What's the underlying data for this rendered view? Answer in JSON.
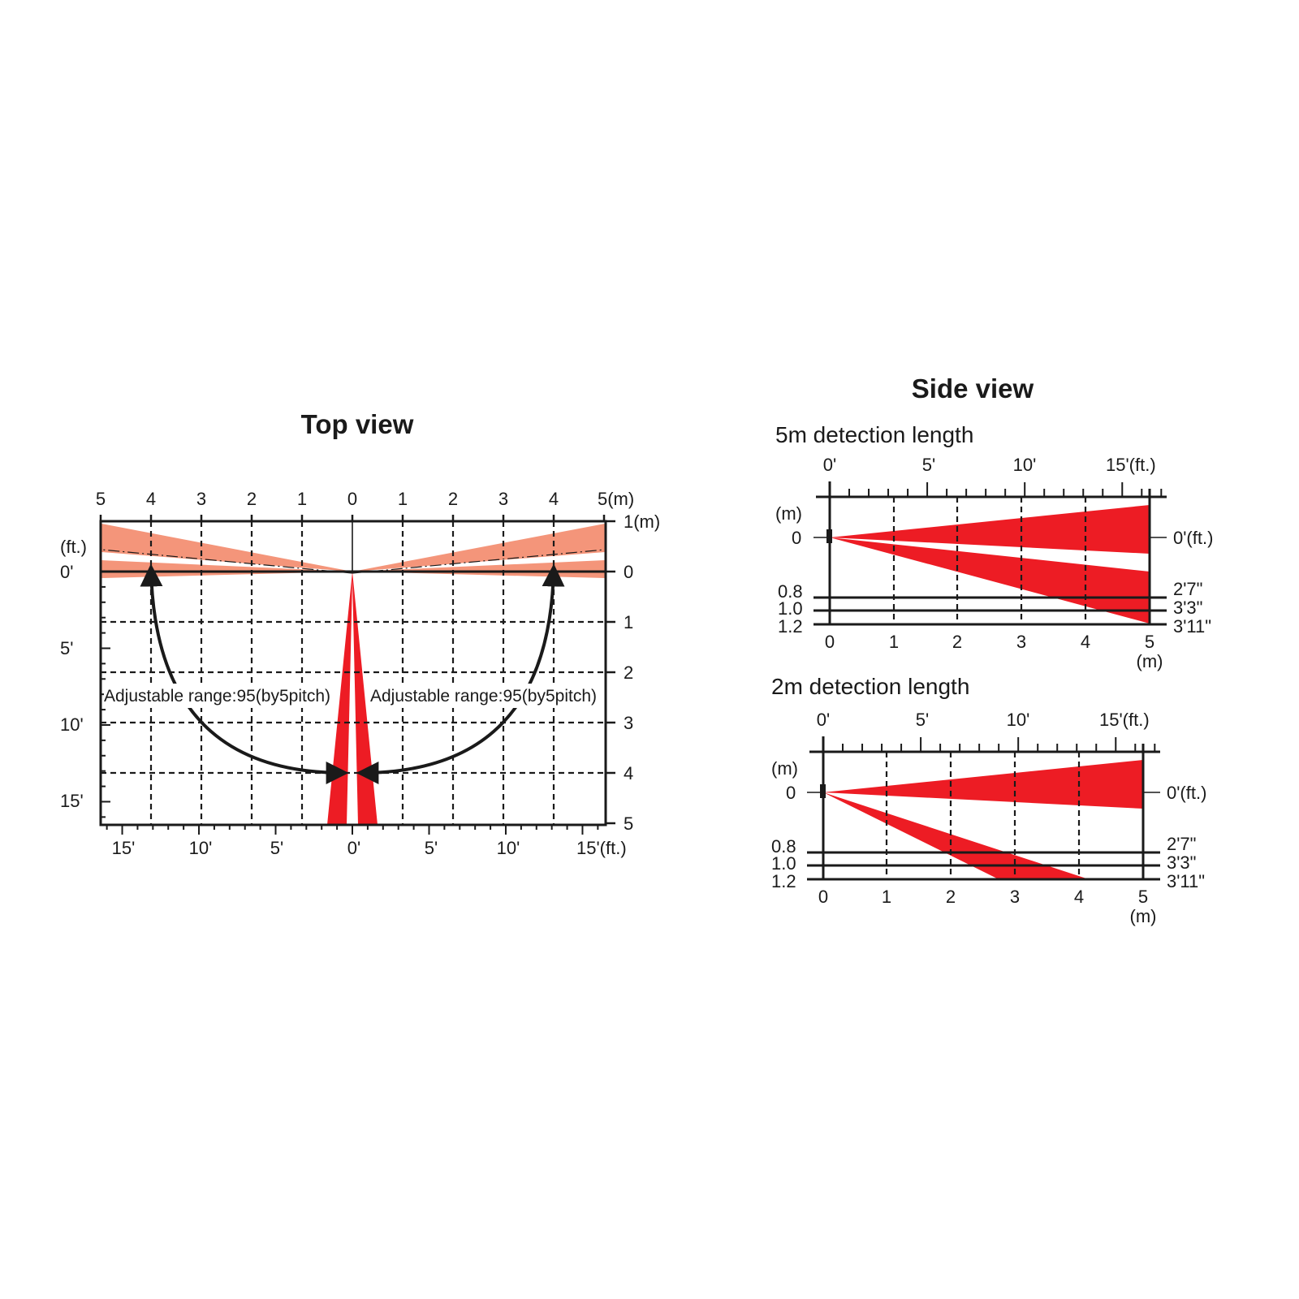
{
  "colors": {
    "beam": "#ed1c24",
    "beam_light": "#f4957a",
    "line": "#1a1a1a"
  },
  "top_view": {
    "title": "Top view",
    "m_top_labels": [
      "5",
      "4",
      "3",
      "2",
      "1",
      "0",
      "1",
      "2",
      "3",
      "4",
      "5(m)"
    ],
    "m_right_labels": [
      "1(m)",
      "0",
      "1",
      "2",
      "3",
      "4",
      "5"
    ],
    "ft_left_unit": "(ft.)",
    "ft_left_labels": [
      "0'",
      "5'",
      "10'",
      "15'"
    ],
    "ft_bottom_labels": [
      "15'",
      "10'",
      "5'",
      "0'",
      "5'",
      "10'",
      "15'(ft.)"
    ],
    "note_left": "Adjustable range:95(by5pitch)",
    "note_right": "Adjustable range:95(by5pitch)"
  },
  "side_view": {
    "title": "Side view",
    "panels": [
      {
        "subtitle": "5m detection length",
        "ft_top_labels": [
          "0'",
          "5'",
          "10'",
          "15'(ft.)"
        ],
        "m_unit_left": "(m)",
        "left_labels": [
          "0",
          "0.8",
          "1.0",
          "1.2"
        ],
        "right_labels": [
          "0'(ft.)",
          "2'7\"",
          "3'3\"",
          "3'11\""
        ],
        "bottom_labels": [
          "0",
          "1",
          "2",
          "3",
          "4",
          "5"
        ],
        "bottom_unit": "(m)",
        "lower_beam_end_m": 5
      },
      {
        "subtitle": "2m detection length",
        "ft_top_labels": [
          "0'",
          "5'",
          "10'",
          "15'(ft.)"
        ],
        "m_unit_left": "(m)",
        "left_labels": [
          "0",
          "0.8",
          "1.0",
          "1.2"
        ],
        "right_labels": [
          "0'(ft.)",
          "2'7\"",
          "3'3\"",
          "3'11\""
        ],
        "bottom_labels": [
          "0",
          "1",
          "2",
          "3",
          "4",
          "5"
        ],
        "bottom_unit": "(m)",
        "lower_beam_end_m": 4.1
      }
    ]
  }
}
